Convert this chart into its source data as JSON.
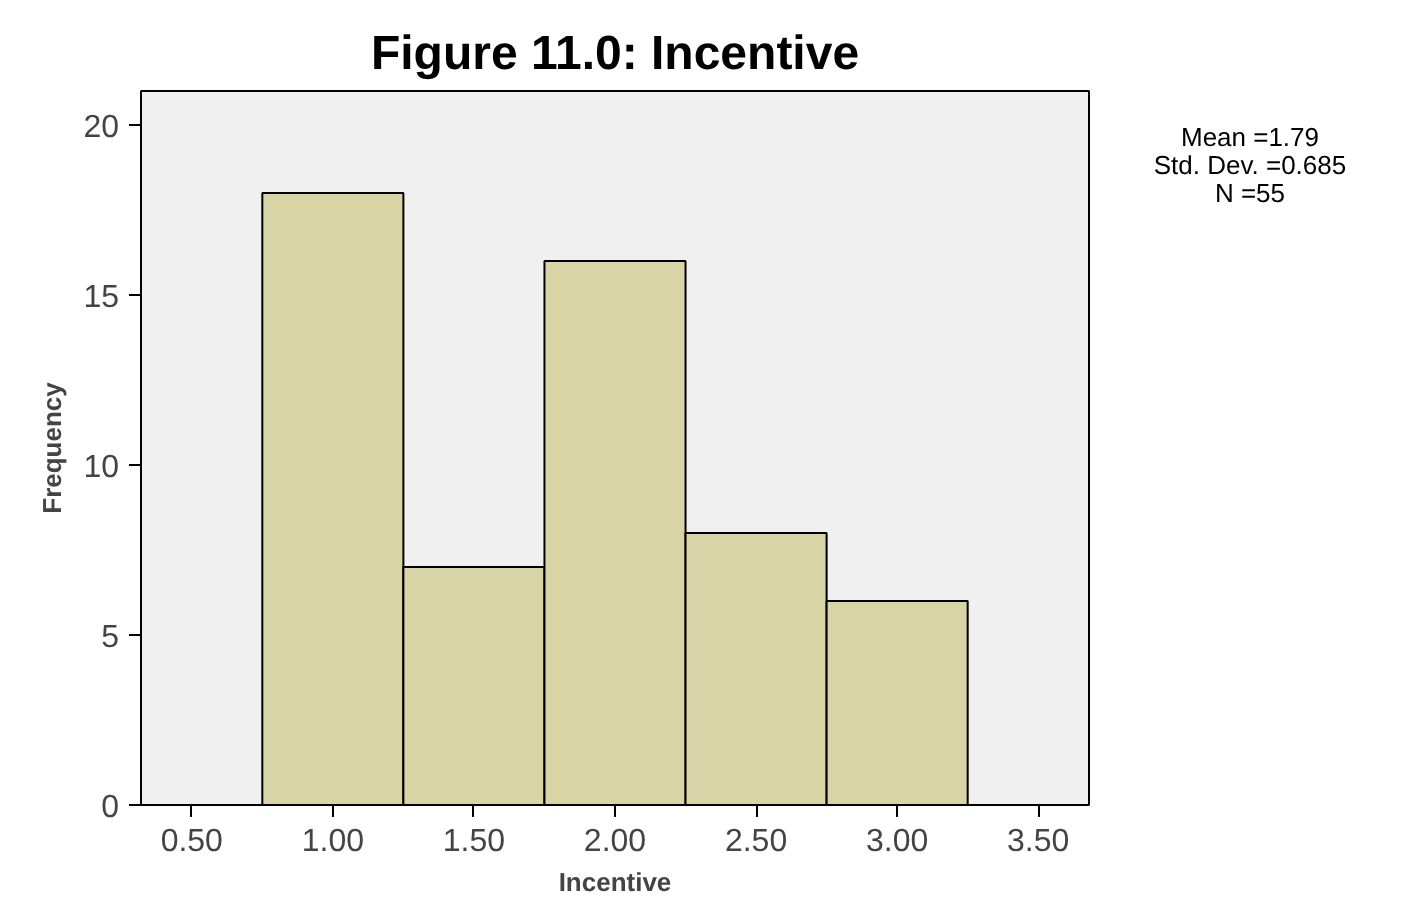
{
  "chart_data": {
    "type": "histogram",
    "title": "Figure 11.0: Incentive",
    "xlabel": "Incentive",
    "ylabel": "Frequency",
    "bins": [
      0.75,
      1.25,
      1.75,
      2.25,
      2.75,
      3.25
    ],
    "values": [
      18,
      7,
      16,
      8,
      6
    ],
    "color": "#d9d4a6",
    "xlim": [
      0.32,
      3.68
    ],
    "xticks": [
      {
        "value": 0.5,
        "label": "0.50"
      },
      {
        "value": 1.0,
        "label": "1.00"
      },
      {
        "value": 1.5,
        "label": "1.50"
      },
      {
        "value": 2.0,
        "label": "2.00"
      },
      {
        "value": 2.5,
        "label": "2.50"
      },
      {
        "value": 3.0,
        "label": "3.00"
      },
      {
        "value": 3.5,
        "label": "3.50"
      }
    ],
    "ylim": [
      0,
      21
    ],
    "yticks": [
      0,
      5,
      10,
      15,
      20
    ],
    "grid": false,
    "annotations": [
      "Mean =1.79",
      "Std. Dev. =0.685",
      "N =55"
    ]
  }
}
